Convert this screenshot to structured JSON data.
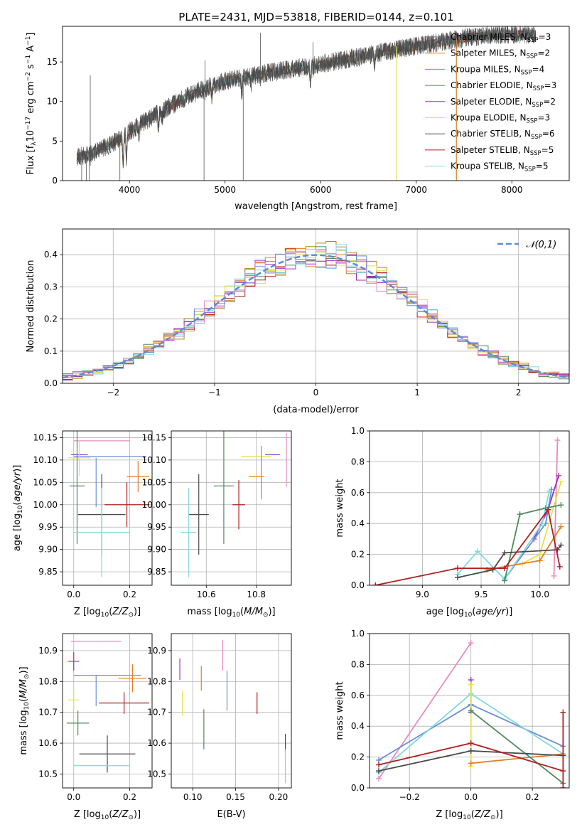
{
  "figure_title": "PLATE=2431, MJD=53818, FIBERID=0144, z=0.101",
  "colors": {
    "Chabrier MILES": "#6a6a6a",
    "Salpeter MILES": "#e67e22",
    "Kroupa MILES": "#b8860b",
    "Chabrier ELODIE": "#4f8a5b",
    "Salpeter ELODIE": "#9b30c8",
    "Kroupa ELODIE": "#e3e34a",
    "Chabrier STELIB": "#4a4a4a",
    "Salpeter STELIB": "#b02020",
    "Kroupa STELIB": "#7fd8e0",
    "blue": "#6a8fd6",
    "pink": "#e88abf",
    "gauss": "#5b8bd9"
  },
  "chart_data": [
    {
      "id": "spectrum",
      "type": "line",
      "title": "PLATE=2431, MJD=53818, FIBERID=0144, z=0.101",
      "xlabel": "wavelength [Angstrom, rest frame]",
      "ylabel": "Flux [f_λ 10^-17 erg cm^-2 s^-1 A^-1]",
      "xlim": [
        3300,
        8600
      ],
      "ylim": [
        0,
        19.5
      ],
      "xticks": [
        4000,
        5000,
        6000,
        7000,
        8000
      ],
      "yticks": [
        0,
        5,
        10,
        15
      ],
      "legend_position": "top-right",
      "legend": [
        {
          "label": "Chabrier MILES, N_SSP=3",
          "label_html": "Chabrier MILES, N<sub>SSP</sub>=3",
          "color": "#6a6a6a"
        },
        {
          "label": "Salpeter MILES, N_SSP=2",
          "label_html": "Salpeter MILES, N<sub>SSP</sub>=2",
          "color": "#e67e22"
        },
        {
          "label": "Kroupa MILES, N_SSP=4",
          "label_html": "Kroupa MILES, N<sub>SSP</sub>=4",
          "color": "#b8860b"
        },
        {
          "label": "Chabrier ELODIE, N_SSP=3",
          "label_html": "Chabrier ELODIE, N<sub>SSP</sub>=3",
          "color": "#4f8a5b"
        },
        {
          "label": "Salpeter ELODIE, N_SSP=2",
          "label_html": "Salpeter ELODIE, N<sub>SSP</sub>=2",
          "color": "#9b30c8"
        },
        {
          "label": "Kroupa ELODIE, N_SSP=3",
          "label_html": "Kroupa ELODIE, N<sub>SSP</sub>=3",
          "color": "#e3e34a"
        },
        {
          "label": "Chabrier STELIB, N_SSP=6",
          "label_html": "Chabrier STELIB, N<sub>SSP</sub>=6",
          "color": "#4a4a4a"
        },
        {
          "label": "Salpeter STELIB, N_SSP=5",
          "label_html": "Salpeter STELIB, N<sub>SSP</sub>=5",
          "color": "#b02020"
        },
        {
          "label": "Kroupa STELIB, N_SSP=5",
          "label_html": "Kroupa STELIB, N<sub>SSP</sub>=5",
          "color": "#7fd8e0"
        }
      ],
      "continuum": {
        "x": [
          3450,
          3600,
          3800,
          4000,
          4200,
          4400,
          4600,
          4800,
          5000,
          5200,
          5400,
          5600,
          5800,
          6000,
          6200,
          6400,
          6600,
          6800,
          7000,
          7200,
          7400,
          7600,
          7800,
          8000,
          8200
        ],
        "y": [
          3.0,
          3.4,
          4.5,
          6.2,
          7.8,
          9.2,
          10.6,
          11.7,
          12.6,
          13.1,
          13.5,
          13.9,
          14.3,
          14.7,
          15.2,
          15.6,
          16.1,
          16.6,
          17.0,
          17.4,
          17.8,
          18.2,
          18.4,
          18.5,
          18.5
        ]
      },
      "absorption_lines": [
        {
          "x": 3934,
          "depth": 3.5
        },
        {
          "x": 3969,
          "depth": 3.0
        },
        {
          "x": 4102,
          "depth": 1.5
        },
        {
          "x": 4304,
          "depth": 2.0
        },
        {
          "x": 4341,
          "depth": 1.2
        },
        {
          "x": 4861,
          "depth": 1.5
        },
        {
          "x": 5175,
          "depth": 1.8
        },
        {
          "x": 5270,
          "depth": 1.0
        },
        {
          "x": 5893,
          "depth": 2.0
        },
        {
          "x": 6563,
          "depth": 1.5
        }
      ],
      "spikes_down": [
        {
          "x": 3500,
          "to": 0
        },
        {
          "x": 3550,
          "to": 0
        },
        {
          "x": 3580,
          "to": 0
        },
        {
          "x": 3900,
          "to": 0
        },
        {
          "x": 4780,
          "to": 0
        },
        {
          "x": 5190,
          "to": 0
        },
        {
          "x": 6790,
          "to": 0
        },
        {
          "x": 7420,
          "to": 0
        }
      ],
      "spikes_up": [
        {
          "x": 3590,
          "to": 13.3
        },
        {
          "x": 4790,
          "to": 15.2
        },
        {
          "x": 5370,
          "to": 18.7
        },
        {
          "x": 5920,
          "to": 17.5
        }
      ]
    },
    {
      "id": "residuals",
      "type": "histogram",
      "xlabel": "(data-model)/error",
      "ylabel": "Normed distribution",
      "xlim": [
        -2.5,
        2.5
      ],
      "ylim": [
        0,
        0.48
      ],
      "xticks": [
        -2,
        -1,
        0,
        1,
        2
      ],
      "yticks": [
        0.0,
        0.1,
        0.2,
        0.3,
        0.4
      ],
      "bin_width": 0.1,
      "grid": true,
      "legend_position": "top-right",
      "reference": {
        "label": "𝒩(0,1)",
        "mean": 0,
        "sigma": 1,
        "color": "#5b8bd9"
      },
      "series_colors": [
        "#e67e22",
        "#b8860b",
        "#4f8a5b",
        "#9b30c8",
        "#e3e34a",
        "#b02020",
        "#7fd8e0",
        "#6a8fd6",
        "#e88abf"
      ]
    },
    {
      "id": "age-vs-Z",
      "type": "errorbar",
      "xlabel": "Z [log10(Z/Z⊙)]",
      "ylabel": "age [log10(age/yr)]",
      "xlim": [
        -0.04,
        0.28
      ],
      "ylim": [
        9.82,
        10.165
      ],
      "xticks": [
        0.0,
        0.2
      ],
      "yticks": [
        9.85,
        9.9,
        9.95,
        10.0,
        10.05,
        10.1,
        10.15
      ],
      "grid": true,
      "points": [
        {
          "x": 0.1,
          "y": 10.143,
          "xerr": 0.1,
          "yerr": 0.0,
          "color": "#e88abf"
        },
        {
          "x": 0.02,
          "y": 10.112,
          "xerr": 0.03,
          "yerr": 0.0,
          "color": "#9b30c8"
        },
        {
          "x": 0.13,
          "y": 10.108,
          "xerr": 0.13,
          "yerr": 0.0,
          "color": "#6a8fd6"
        },
        {
          "x": 0.02,
          "y": 10.105,
          "xerr": 0.04,
          "yerr": 0.04,
          "color": "#e3e34a"
        },
        {
          "x": 0.23,
          "y": 10.063,
          "xerr": 0.04,
          "yerr": 0.035,
          "color": "#e67e22"
        },
        {
          "x": 0.012,
          "y": 10.042,
          "xerr": 0.027,
          "yerr": 0.13,
          "color": "#4f8a5b"
        },
        {
          "x": 0.08,
          "y": 10.05,
          "xerr": 0.0,
          "yerr": 0.055,
          "color": "#6a8fd6"
        },
        {
          "x": 0.19,
          "y": 10.0,
          "xerr": 0.08,
          "yerr": 0.05,
          "color": "#b02020"
        },
        {
          "x": 0.1,
          "y": 9.978,
          "xerr": 0.085,
          "yerr": 0.09,
          "color": "#4a4a4a"
        },
        {
          "x": 0.1,
          "y": 9.938,
          "xerr": 0.1,
          "yerr": 0.1,
          "color": "#7fd8e0"
        }
      ]
    },
    {
      "id": "age-vs-mass",
      "type": "errorbar",
      "xlabel": "mass [log10(M/M⊙)]",
      "ylabel": "",
      "xlim": [
        10.46,
        10.94
      ],
      "ylim": [
        9.82,
        10.165
      ],
      "xticks": [
        10.6,
        10.8
      ],
      "yticks": [
        9.85,
        9.9,
        9.95,
        10.0,
        10.05,
        10.1,
        10.15
      ],
      "grid": true,
      "points": [
        {
          "x": 10.92,
          "y": 10.1,
          "xerr": 0.0,
          "yerr": 0.06,
          "color": "#e88abf"
        },
        {
          "x": 10.865,
          "y": 10.112,
          "xerr": 0.03,
          "yerr": 0.0,
          "color": "#9b30c8"
        },
        {
          "x": 10.8,
          "y": 10.108,
          "xerr": 0.06,
          "yerr": 0.0,
          "color": "#e3e34a"
        },
        {
          "x": 10.82,
          "y": 10.072,
          "xerr": 0.0,
          "yerr": 0.06,
          "color": "#6a8fd6"
        },
        {
          "x": 10.8,
          "y": 10.063,
          "xerr": 0.03,
          "yerr": 0.0,
          "color": "#e67e22"
        },
        {
          "x": 10.67,
          "y": 10.042,
          "xerr": 0.04,
          "yerr": 0.13,
          "color": "#4f8a5b"
        },
        {
          "x": 10.73,
          "y": 10.0,
          "xerr": 0.025,
          "yerr": 0.055,
          "color": "#b02020"
        },
        {
          "x": 10.57,
          "y": 9.978,
          "xerr": 0.04,
          "yerr": 0.09,
          "color": "#4a4a4a"
        },
        {
          "x": 10.53,
          "y": 9.938,
          "xerr": 0.03,
          "yerr": 0.1,
          "color": "#7fd8e0"
        }
      ]
    },
    {
      "id": "massweight-vs-age",
      "type": "line",
      "xlabel": "age [log10(age/yr)]",
      "ylabel": "mass weight",
      "xlim": [
        8.55,
        10.25
      ],
      "ylim": [
        0,
        1.0
      ],
      "xticks": [
        9.0,
        9.5,
        10.0
      ],
      "yticks": [
        0.0,
        0.2,
        0.4,
        0.6,
        0.8,
        1.0
      ],
      "grid": true,
      "series": [
        {
          "color": "#e88abf",
          "x": [
            10.12,
            10.15
          ],
          "y": [
            0.06,
            0.94
          ]
        },
        {
          "color": "#9b30c8",
          "x": [
            9.95,
            10.07,
            10.16
          ],
          "y": [
            0.3,
            0.49,
            0.71
          ]
        },
        {
          "color": "#6a8fd6",
          "x": [
            9.7,
            10.05,
            10.1
          ],
          "y": [
            0.04,
            0.4,
            0.62
          ]
        },
        {
          "color": "#7fd8e0",
          "x": [
            9.3,
            9.47,
            9.7,
            10.02,
            10.08
          ],
          "y": [
            0.07,
            0.22,
            0.04,
            0.4,
            0.61
          ]
        },
        {
          "color": "#e3e34a",
          "x": [
            9.85,
            10.0,
            10.18
          ],
          "y": [
            0.14,
            0.2,
            0.67
          ]
        },
        {
          "color": "#e67e22",
          "x": [
            9.55,
            10.0,
            10.18
          ],
          "y": [
            0.1,
            0.16,
            0.38
          ]
        },
        {
          "color": "#4f8a5b",
          "x": [
            9.7,
            9.83,
            10.05,
            10.18
          ],
          "y": [
            0.03,
            0.46,
            0.5,
            0.52
          ]
        },
        {
          "color": "#4a4a4a",
          "x": [
            9.3,
            9.6,
            9.7,
            10.15,
            10.18
          ],
          "y": [
            0.05,
            0.1,
            0.21,
            0.23,
            0.26
          ]
        },
        {
          "color": "#b02020",
          "x": [
            8.6,
            9.3,
            9.7,
            10.07,
            10.17
          ],
          "y": [
            0.0,
            0.11,
            0.11,
            0.49,
            0.12
          ]
        }
      ]
    },
    {
      "id": "mass-vs-Z",
      "type": "errorbar",
      "xlabel": "Z [log10(Z/Z⊙)]",
      "ylabel": "mass [log10(M/M⊙)]",
      "xlim": [
        -0.04,
        0.28
      ],
      "ylim": [
        10.455,
        10.955
      ],
      "xticks": [
        0.0,
        0.2
      ],
      "yticks": [
        10.5,
        10.6,
        10.7,
        10.8,
        10.9
      ],
      "grid": true,
      "points": [
        {
          "x": 0.08,
          "y": 10.93,
          "xerr": 0.09,
          "yerr": 0.0,
          "color": "#e88abf"
        },
        {
          "x": 0.0,
          "y": 10.865,
          "xerr": 0.02,
          "yerr": 0.03,
          "color": "#9b30c8"
        },
        {
          "x": 0.12,
          "y": 10.82,
          "xerr": 0.12,
          "yerr": 0.0,
          "color": "#6a8fd6"
        },
        {
          "x": 0.21,
          "y": 10.81,
          "xerr": 0.05,
          "yerr": 0.045,
          "color": "#e67e22"
        },
        {
          "x": 0.0,
          "y": 10.74,
          "xerr": 0.02,
          "yerr": 0.03,
          "color": "#e3e34a"
        },
        {
          "x": 0.08,
          "y": 10.77,
          "xerr": 0.0,
          "yerr": 0.05,
          "color": "#6a8fd6"
        },
        {
          "x": 0.18,
          "y": 10.73,
          "xerr": 0.09,
          "yerr": 0.035,
          "color": "#b02020"
        },
        {
          "x": 0.015,
          "y": 10.665,
          "xerr": 0.04,
          "yerr": 0.04,
          "color": "#4f8a5b"
        },
        {
          "x": 0.12,
          "y": 10.565,
          "xerr": 0.1,
          "yerr": 0.06,
          "color": "#4a4a4a"
        },
        {
          "x": 0.1,
          "y": 10.527,
          "xerr": 0.1,
          "yerr": 0.0,
          "color": "#7fd8e0"
        }
      ]
    },
    {
      "id": "mass-vs-ebv",
      "type": "errorbar",
      "xlabel": "E(B-V)",
      "ylabel": "",
      "xlim": [
        0.075,
        0.215
      ],
      "ylim": [
        10.455,
        10.955
      ],
      "xticks": [
        0.1,
        0.15,
        0.2
      ],
      "yticks": [
        10.5,
        10.6,
        10.7,
        10.8,
        10.9
      ],
      "grid": true,
      "points": [
        {
          "x": 0.135,
          "y": 10.885,
          "xerr": 0.0,
          "yerr": 0.05,
          "color": "#e88abf"
        },
        {
          "x": 0.085,
          "y": 10.84,
          "xerr": 0.0,
          "yerr": 0.035,
          "color": "#9b30c8"
        },
        {
          "x": 0.14,
          "y": 10.77,
          "xerr": 0.0,
          "yerr": 0.065,
          "color": "#6a8fd6"
        },
        {
          "x": 0.11,
          "y": 10.81,
          "xerr": 0.0,
          "yerr": 0.04,
          "color": "#e67e22"
        },
        {
          "x": 0.088,
          "y": 10.73,
          "xerr": 0.0,
          "yerr": 0.04,
          "color": "#e3e34a"
        },
        {
          "x": 0.175,
          "y": 10.73,
          "xerr": 0.0,
          "yerr": 0.035,
          "color": "#b02020"
        },
        {
          "x": 0.113,
          "y": 10.645,
          "xerr": 0.0,
          "yerr": 0.065,
          "color": "#4f8a5b"
        },
        {
          "x": 0.208,
          "y": 10.6,
          "xerr": 0.0,
          "yerr": 0.03,
          "color": "#4a4a4a"
        },
        {
          "x": 0.208,
          "y": 10.525,
          "xerr": 0.0,
          "yerr": 0.055,
          "color": "#7fd8e0"
        }
      ]
    },
    {
      "id": "massweight-vs-Z",
      "type": "line",
      "xlabel": "Z [log10(Z/Z⊙)]",
      "ylabel": "mass weight",
      "xlim": [
        -0.33,
        0.32
      ],
      "ylim": [
        0,
        1.0
      ],
      "xticks": [
        -0.2,
        0.0,
        0.2
      ],
      "yticks": [
        0.0,
        0.2,
        0.4,
        0.6,
        0.8,
        1.0
      ],
      "grid": true,
      "series": [
        {
          "color": "#e88abf",
          "x": [
            -0.3,
            0.0
          ],
          "y": [
            0.06,
            0.94
          ]
        },
        {
          "color": "#9b30c8",
          "x": [
            0.0,
            0.0
          ],
          "y": [
            0.49,
            0.7
          ]
        },
        {
          "color": "#6a8fd6",
          "x": [
            -0.3,
            0.0,
            0.3
          ],
          "y": [
            0.18,
            0.54,
            0.27
          ]
        },
        {
          "color": "#7fd8e0",
          "x": [
            -0.3,
            0.0,
            0.3
          ],
          "y": [
            0.1,
            0.61,
            0.22
          ]
        },
        {
          "color": "#e3e34a",
          "x": [
            0.0,
            0.0
          ],
          "y": [
            0.14,
            0.67
          ]
        },
        {
          "color": "#e67e22",
          "x": [
            0.0,
            0.3
          ],
          "y": [
            0.16,
            0.22
          ]
        },
        {
          "color": "#4f8a5b",
          "x": [
            0.0,
            0.3
          ],
          "y": [
            0.5,
            0.03
          ]
        },
        {
          "color": "#4a4a4a",
          "x": [
            -0.3,
            0.0,
            0.3
          ],
          "y": [
            0.11,
            0.24,
            0.21
          ]
        },
        {
          "color": "#b02020",
          "x": [
            -0.3,
            0.0,
            0.3
          ],
          "y": [
            0.15,
            0.29,
            0.11
          ]
        },
        {
          "color": "#b02020",
          "x": [
            0.3,
            0.3
          ],
          "y": [
            0.0,
            0.49
          ]
        }
      ]
    }
  ]
}
